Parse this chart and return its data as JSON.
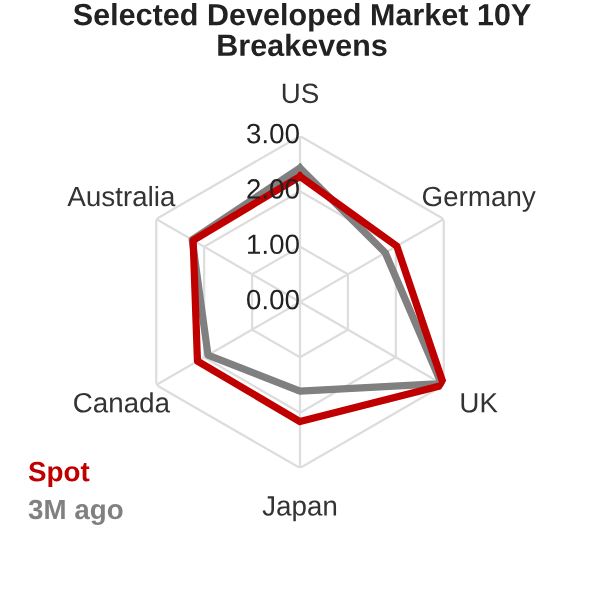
{
  "chart_data": {
    "type": "radar",
    "title": "Selected Developed Market 10Y\nBreakevens",
    "categories": [
      "US",
      "Germany",
      "UK",
      "Japan",
      "Canada",
      "Australia"
    ],
    "ylim": [
      0,
      3
    ],
    "yticks": [
      {
        "value": 0,
        "label": "0.00"
      },
      {
        "value": 1,
        "label": "1.00"
      },
      {
        "value": 2,
        "label": "2.00"
      },
      {
        "value": 3,
        "label": "3.00"
      }
    ],
    "grid": true,
    "legend": "bottom left",
    "marker": "none",
    "line_style": "solid",
    "series": [
      {
        "name": "Spot",
        "color": "#c00000",
        "values": [
          2.27,
          2.02,
          3.0,
          2.16,
          2.14,
          2.23
        ]
      },
      {
        "name": "3M ago",
        "color": "#808080",
        "values": [
          2.42,
          1.78,
          2.95,
          1.61,
          1.92,
          2.25
        ]
      }
    ]
  }
}
